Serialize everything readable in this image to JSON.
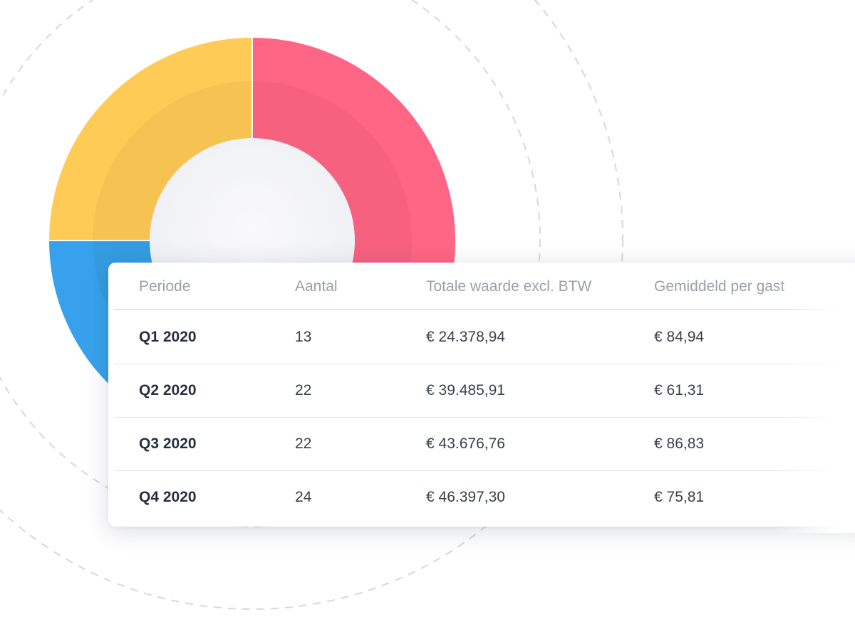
{
  "chart_data": {
    "type": "pie",
    "categories": [
      "segment-red",
      "segment-blue",
      "segment-yellow"
    ],
    "values": [
      62,
      13,
      25
    ],
    "colors": [
      "#FF6584",
      "#37A2EB",
      "#FFCB57"
    ],
    "title": "",
    "xlabel": "",
    "ylabel": ""
  },
  "table": {
    "headers": {
      "period": "Periode",
      "count": "Aantal",
      "total": "Totale waarde excl. BTW",
      "average": "Gemiddeld per gast"
    },
    "rows": [
      {
        "period": "Q1 2020",
        "count": "13",
        "total": "€ 24.378,94",
        "average": "€ 84,94"
      },
      {
        "period": "Q2 2020",
        "count": "22",
        "total": "€ 39.485,91",
        "average": "€ 61,31"
      },
      {
        "period": "Q3 2020",
        "count": "22",
        "total": "€ 43.676,76",
        "average": "€ 86,83"
      },
      {
        "period": "Q4 2020",
        "count": "24",
        "total": "€ 46.397,30",
        "average": "€ 75,81"
      }
    ]
  }
}
